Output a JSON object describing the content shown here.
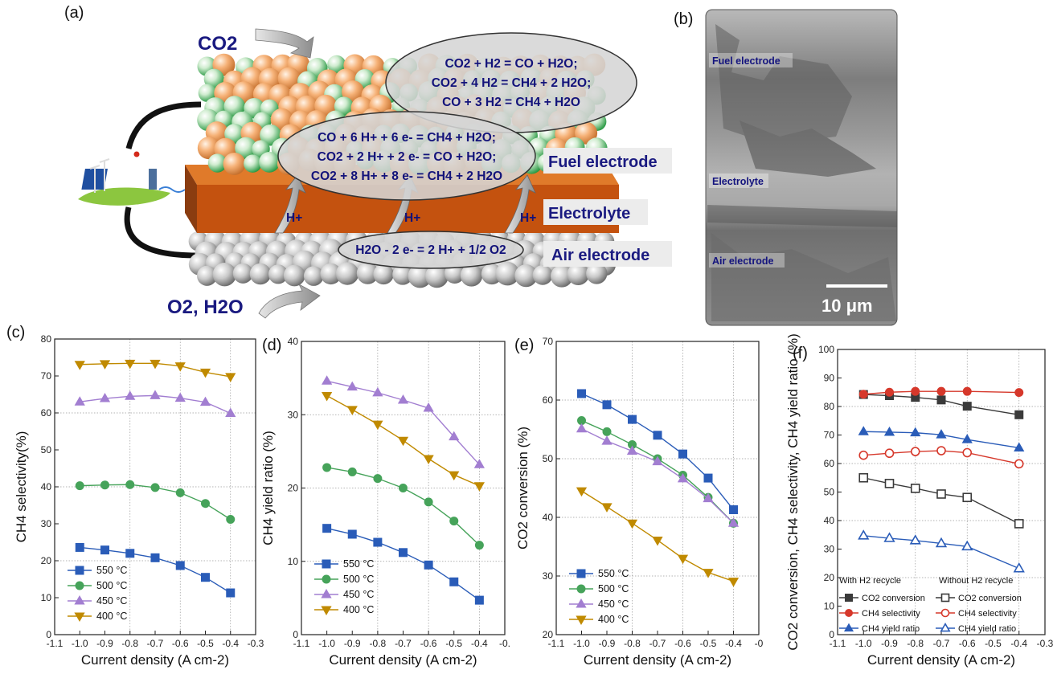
{
  "panel_labels": {
    "a": "(a)",
    "b": "(b)",
    "c": "(c)",
    "d": "(d)",
    "e": "(e)",
    "f": "(f)"
  },
  "schematic": {
    "co2_in": "CO2",
    "o2_h2o_out": "O2, H2O",
    "gas_eq": [
      "CO2 + H2 = CO + H2O;",
      "CO2 + 4 H2 = CH4 + 2 H2O;",
      "CO + 3 H2 = CH4 + H2O"
    ],
    "elec_eq": [
      "CO + 6 H+ + 6 e- = CH4 + H2O;",
      "CO2 + 2 H+ + 2 e- = CO + H2O;",
      "CO2 + 8 H+ + 8 e- = CH4 + 2 H2O"
    ],
    "air_eq": "H2O - 2 e- = 2 H+ + 1/2 O2",
    "proton": "H+",
    "layers": [
      "Fuel electrode",
      "Electrolyte",
      "Air electrode"
    ]
  },
  "sem": {
    "labels": [
      "Fuel electrode",
      "Electrolyte",
      "Air electrode"
    ],
    "scale_bar": "10 μm"
  },
  "colors": {
    "blue": "#2a5cb8",
    "green": "#46a35a",
    "purple": "#a27ed1",
    "gold": "#c08a00",
    "red": "#d6382b",
    "dark": "#3a3a3a"
  },
  "chart_data": [
    {
      "panel": "c",
      "type": "line",
      "xlabel": "Current density (A cm-2)",
      "ylabel": "CH4 selectivity(%)",
      "xlim": [
        -1.1,
        -0.3
      ],
      "ylim": [
        0,
        80
      ],
      "x_ticks": [
        "-1.1",
        "-1.0",
        "-0.9",
        "-0.8",
        "-0.7",
        "-0.6",
        "-0.5",
        "-0.4",
        "-0.3"
      ],
      "y_ticks": [
        "0",
        "10",
        "20",
        "30",
        "40",
        "50",
        "60",
        "70",
        "80"
      ],
      "x": [
        -1.0,
        -0.9,
        -0.8,
        -0.7,
        -0.6,
        -0.5,
        -0.4
      ],
      "legend": "bottom-left",
      "series": [
        {
          "name": "550 °C",
          "values": [
            23.6,
            22.9,
            22.0,
            20.8,
            18.7,
            15.5,
            11.3
          ]
        },
        {
          "name": "500 °C",
          "values": [
            40.3,
            40.5,
            40.6,
            39.8,
            38.4,
            35.5,
            31.2
          ]
        },
        {
          "name": "450 °C",
          "values": [
            63.0,
            63.9,
            64.5,
            64.7,
            64.0,
            62.9,
            59.9
          ]
        },
        {
          "name": "400 °C",
          "values": [
            73.1,
            73.3,
            73.4,
            73.4,
            72.7,
            71.0,
            69.8
          ]
        }
      ]
    },
    {
      "panel": "d",
      "type": "line",
      "xlabel": "Current density (A cm-2)",
      "ylabel": "CH4 yield ratio (%)",
      "xlim": [
        -1.1,
        -0.3
      ],
      "ylim": [
        0,
        40
      ],
      "x_ticks": [
        "-1.1",
        "-1.0",
        "-0.9",
        "-0.8",
        "-0.7",
        "-0.6",
        "-0.5",
        "-0.4",
        "-0."
      ],
      "y_ticks": [
        "0",
        "10",
        "20",
        "30",
        "40"
      ],
      "x": [
        -1.0,
        -0.9,
        -0.8,
        -0.7,
        -0.6,
        -0.5,
        -0.4
      ],
      "legend": "bottom-left",
      "series": [
        {
          "name": "550 °C",
          "values": [
            14.5,
            13.7,
            12.6,
            11.2,
            9.5,
            7.2,
            4.7
          ]
        },
        {
          "name": "500 °C",
          "values": [
            22.8,
            22.2,
            21.3,
            20.0,
            18.1,
            15.5,
            12.2
          ]
        },
        {
          "name": "450 °C",
          "values": [
            34.6,
            33.8,
            33.0,
            32.0,
            30.9,
            27.0,
            23.2
          ]
        },
        {
          "name": "400 °C",
          "values": [
            32.6,
            30.7,
            28.7,
            26.5,
            24.0,
            21.8,
            20.3
          ]
        }
      ]
    },
    {
      "panel": "e",
      "type": "line",
      "xlabel": "Current density (A cm-2)",
      "ylabel": "CO2 conversion (%)",
      "xlim": [
        -1.1,
        -0.3
      ],
      "ylim": [
        20,
        70
      ],
      "x_ticks": [
        "-1.1",
        "-1.0",
        "-0.9",
        "-0.8",
        "-0.7",
        "-0.6",
        "-0.5",
        "-0.4",
        "-0"
      ],
      "y_ticks": [
        "20",
        "30",
        "40",
        "50",
        "60",
        "70"
      ],
      "x": [
        -1.0,
        -0.9,
        -0.8,
        -0.7,
        -0.6,
        -0.5,
        -0.4
      ],
      "legend": "bottom-left",
      "series": [
        {
          "name": "550 °C",
          "values": [
            61.1,
            59.2,
            56.7,
            54.0,
            50.8,
            46.7,
            41.3
          ]
        },
        {
          "name": "500 °C",
          "values": [
            56.5,
            54.6,
            52.4,
            50.0,
            47.2,
            43.4,
            39.0
          ]
        },
        {
          "name": "450 °C",
          "values": [
            55.1,
            53.0,
            51.3,
            49.5,
            46.6,
            43.2,
            39.0
          ]
        },
        {
          "name": "400 °C",
          "values": [
            44.5,
            41.8,
            39.0,
            36.1,
            33.0,
            30.6,
            29.1
          ]
        }
      ]
    },
    {
      "panel": "f",
      "type": "line",
      "xlabel": "Current density (A cm-2)",
      "ylabel": "CO2 conversion, CH4 selectivity, CH4 yield ratio (%)",
      "xlim": [
        -1.1,
        -0.3
      ],
      "ylim": [
        0,
        100
      ],
      "x_ticks": [
        "-1.1",
        "-1.0",
        "-0.9",
        "-0.8",
        "-0.7",
        "-0.6",
        "-0.5",
        "-0.4",
        "-0.3"
      ],
      "y_ticks": [
        "0",
        "10",
        "20",
        "30",
        "40",
        "50",
        "60",
        "70",
        "80",
        "90",
        "100"
      ],
      "x": [
        -1.0,
        -0.9,
        -0.8,
        -0.7,
        -0.6,
        -0.4
      ],
      "legend_headers": [
        "With H2 recycle",
        "Without H2 recycle"
      ],
      "legend": "bottom",
      "series": [
        {
          "name": "CO2 conversion",
          "group": "With H2 recycle",
          "values": [
            84.2,
            83.8,
            83.2,
            82.3,
            80.1,
            77.1
          ]
        },
        {
          "name": "CH4 selectivity",
          "group": "With H2 recycle",
          "values": [
            84.3,
            85.0,
            85.3,
            85.3,
            85.3,
            84.9
          ]
        },
        {
          "name": "CH4 yield ratio",
          "group": "With H2 recycle",
          "values": [
            71.2,
            71.0,
            70.8,
            70.1,
            68.4,
            65.5
          ]
        },
        {
          "name": "CO2 conversion",
          "group": "Without H2 recycle",
          "values": [
            55.0,
            53.0,
            51.3,
            49.3,
            48.1,
            38.9
          ]
        },
        {
          "name": "CH4 selectivity",
          "group": "Without H2 recycle",
          "values": [
            62.9,
            63.6,
            64.2,
            64.5,
            63.8,
            59.9
          ]
        },
        {
          "name": "CH4 yield ratio",
          "group": "Without H2 recycle",
          "values": [
            34.7,
            33.8,
            33.0,
            32.0,
            30.9,
            23.2
          ]
        }
      ]
    }
  ]
}
